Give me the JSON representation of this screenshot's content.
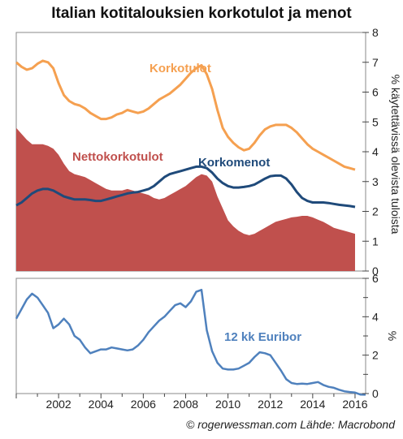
{
  "title": "Italian kotitalouksien korkotulot ja menot",
  "credit": "© rogerwessman.com Lähde: Macrobond",
  "colors": {
    "korkotulot": "#F5A050",
    "korkomenot": "#1F4A7A",
    "nettokorkotulot": "#C0504D",
    "euribor": "#4F81BD"
  },
  "chart_data": [
    {
      "type": "line",
      "ylabel": "% käytettävissä olevista tuloista",
      "ylim": [
        0,
        8
      ],
      "yticks": [
        "0",
        "1",
        "2",
        "3",
        "4",
        "5",
        "6",
        "7",
        "8"
      ],
      "series": [
        {
          "name": "Korkotulot",
          "x": [
            2000.0,
            2000.25,
            2000.5,
            2000.75,
            2001.0,
            2001.25,
            2001.5,
            2001.75,
            2002.0,
            2002.25,
            2002.5,
            2002.75,
            2003.0,
            2003.25,
            2003.5,
            2003.75,
            2004.0,
            2004.25,
            2004.5,
            2004.75,
            2005.0,
            2005.25,
            2005.5,
            2005.75,
            2006.0,
            2006.25,
            2006.5,
            2006.75,
            2007.0,
            2007.25,
            2007.5,
            2007.75,
            2008.0,
            2008.25,
            2008.5,
            2008.75,
            2009.0,
            2009.25,
            2009.5,
            2009.75,
            2010.0,
            2010.25,
            2010.5,
            2010.75,
            2011.0,
            2011.25,
            2011.5,
            2011.75,
            2012.0,
            2012.25,
            2012.5,
            2012.75,
            2013.0,
            2013.25,
            2013.5,
            2013.75,
            2014.0,
            2014.25,
            2014.5,
            2014.75,
            2015.0,
            2015.25,
            2015.5,
            2015.75,
            2016.0
          ],
          "values": [
            7.0,
            6.85,
            6.75,
            6.8,
            6.95,
            7.05,
            7.0,
            6.8,
            6.3,
            5.9,
            5.7,
            5.6,
            5.55,
            5.45,
            5.3,
            5.2,
            5.1,
            5.1,
            5.15,
            5.25,
            5.3,
            5.4,
            5.35,
            5.3,
            5.35,
            5.45,
            5.6,
            5.75,
            5.85,
            5.95,
            6.1,
            6.25,
            6.45,
            6.65,
            6.8,
            6.9,
            6.6,
            6.1,
            5.4,
            4.8,
            4.5,
            4.3,
            4.15,
            4.05,
            4.1,
            4.3,
            4.55,
            4.75,
            4.85,
            4.9,
            4.9,
            4.9,
            4.8,
            4.65,
            4.45,
            4.25,
            4.1,
            4.0,
            3.9,
            3.8,
            3.7,
            3.6,
            3.5,
            3.45,
            3.4
          ]
        },
        {
          "name": "Korkomenot",
          "x": [
            2000.0,
            2000.25,
            2000.5,
            2000.75,
            2001.0,
            2001.25,
            2001.5,
            2001.75,
            2002.0,
            2002.25,
            2002.5,
            2002.75,
            2003.0,
            2003.25,
            2003.5,
            2003.75,
            2004.0,
            2004.25,
            2004.5,
            2004.75,
            2005.0,
            2005.25,
            2005.5,
            2005.75,
            2006.0,
            2006.25,
            2006.5,
            2006.75,
            2007.0,
            2007.25,
            2007.5,
            2007.75,
            2008.0,
            2008.25,
            2008.5,
            2008.75,
            2009.0,
            2009.25,
            2009.5,
            2009.75,
            2010.0,
            2010.25,
            2010.5,
            2010.75,
            2011.0,
            2011.25,
            2011.5,
            2011.75,
            2012.0,
            2012.25,
            2012.5,
            2012.75,
            2013.0,
            2013.25,
            2013.5,
            2013.75,
            2014.0,
            2014.25,
            2014.5,
            2014.75,
            2015.0,
            2015.25,
            2015.5,
            2015.75,
            2016.0
          ],
          "values": [
            2.2,
            2.3,
            2.45,
            2.6,
            2.7,
            2.75,
            2.75,
            2.7,
            2.6,
            2.5,
            2.45,
            2.4,
            2.4,
            2.4,
            2.38,
            2.35,
            2.35,
            2.4,
            2.45,
            2.5,
            2.55,
            2.6,
            2.63,
            2.65,
            2.7,
            2.75,
            2.85,
            3.0,
            3.15,
            3.25,
            3.3,
            3.35,
            3.4,
            3.45,
            3.5,
            3.5,
            3.45,
            3.3,
            3.1,
            2.95,
            2.85,
            2.8,
            2.8,
            2.82,
            2.85,
            2.9,
            3.0,
            3.1,
            3.18,
            3.2,
            3.2,
            3.1,
            2.9,
            2.65,
            2.45,
            2.35,
            2.3,
            2.3,
            2.3,
            2.28,
            2.25,
            2.22,
            2.2,
            2.18,
            2.15
          ]
        },
        {
          "name": "Nettokorkotulot",
          "type": "area",
          "x": [
            2000.0,
            2000.25,
            2000.5,
            2000.75,
            2001.0,
            2001.25,
            2001.5,
            2001.75,
            2002.0,
            2002.25,
            2002.5,
            2002.75,
            2003.0,
            2003.25,
            2003.5,
            2003.75,
            2004.0,
            2004.25,
            2004.5,
            2004.75,
            2005.0,
            2005.25,
            2005.5,
            2005.75,
            2006.0,
            2006.25,
            2006.5,
            2006.75,
            2007.0,
            2007.25,
            2007.5,
            2007.75,
            2008.0,
            2008.25,
            2008.5,
            2008.75,
            2009.0,
            2009.25,
            2009.5,
            2009.75,
            2010.0,
            2010.25,
            2010.5,
            2010.75,
            2011.0,
            2011.25,
            2011.5,
            2011.75,
            2012.0,
            2012.25,
            2012.5,
            2012.75,
            2013.0,
            2013.25,
            2013.5,
            2013.75,
            2014.0,
            2014.25,
            2014.5,
            2014.75,
            2015.0,
            2015.25,
            2015.5,
            2015.75,
            2016.0
          ],
          "values": [
            4.8,
            4.6,
            4.4,
            4.25,
            4.25,
            4.25,
            4.2,
            4.1,
            3.9,
            3.6,
            3.35,
            3.25,
            3.2,
            3.15,
            3.05,
            2.95,
            2.85,
            2.75,
            2.7,
            2.7,
            2.7,
            2.75,
            2.7,
            2.65,
            2.6,
            2.55,
            2.45,
            2.4,
            2.45,
            2.55,
            2.65,
            2.75,
            2.85,
            3.0,
            3.15,
            3.25,
            3.2,
            3.0,
            2.5,
            2.1,
            1.7,
            1.5,
            1.35,
            1.25,
            1.2,
            1.25,
            1.35,
            1.45,
            1.55,
            1.65,
            1.7,
            1.75,
            1.8,
            1.82,
            1.85,
            1.85,
            1.8,
            1.72,
            1.65,
            1.55,
            1.45,
            1.4,
            1.35,
            1.3,
            1.25
          ]
        }
      ]
    },
    {
      "type": "line",
      "ylabel": "%",
      "ylim": [
        0,
        6
      ],
      "yticks": [
        "0",
        "2",
        "4",
        "6"
      ],
      "xticks": [
        "2002",
        "2004",
        "2006",
        "2008",
        "2010",
        "2012",
        "2014",
        "2016"
      ],
      "xlim": [
        2000,
        2016.5
      ],
      "series": [
        {
          "name": "12 kk Euribor",
          "x": [
            2000.0,
            2000.25,
            2000.5,
            2000.75,
            2001.0,
            2001.25,
            2001.5,
            2001.75,
            2002.0,
            2002.25,
            2002.5,
            2002.75,
            2003.0,
            2003.25,
            2003.5,
            2003.75,
            2004.0,
            2004.25,
            2004.5,
            2004.75,
            2005.0,
            2005.25,
            2005.5,
            2005.75,
            2006.0,
            2006.25,
            2006.5,
            2006.75,
            2007.0,
            2007.25,
            2007.5,
            2007.75,
            2008.0,
            2008.25,
            2008.5,
            2008.75,
            2009.0,
            2009.25,
            2009.5,
            2009.75,
            2010.0,
            2010.25,
            2010.5,
            2010.75,
            2011.0,
            2011.25,
            2011.5,
            2011.75,
            2012.0,
            2012.25,
            2012.5,
            2012.75,
            2013.0,
            2013.25,
            2013.5,
            2013.75,
            2014.0,
            2014.25,
            2014.5,
            2014.75,
            2015.0,
            2015.25,
            2015.5,
            2015.75,
            2016.0,
            2016.25,
            2016.5
          ],
          "values": [
            3.9,
            4.4,
            4.9,
            5.2,
            5.0,
            4.6,
            4.2,
            3.4,
            3.6,
            3.9,
            3.6,
            3.0,
            2.8,
            2.4,
            2.1,
            2.2,
            2.3,
            2.3,
            2.4,
            2.35,
            2.3,
            2.25,
            2.3,
            2.5,
            2.8,
            3.2,
            3.5,
            3.8,
            4.0,
            4.3,
            4.6,
            4.7,
            4.5,
            4.8,
            5.3,
            5.4,
            3.3,
            2.2,
            1.6,
            1.3,
            1.25,
            1.25,
            1.3,
            1.45,
            1.6,
            1.9,
            2.15,
            2.1,
            2.0,
            1.6,
            1.2,
            0.75,
            0.55,
            0.5,
            0.52,
            0.5,
            0.55,
            0.6,
            0.45,
            0.35,
            0.3,
            0.2,
            0.12,
            0.08,
            0.05,
            -0.05,
            -0.06
          ]
        }
      ]
    }
  ]
}
